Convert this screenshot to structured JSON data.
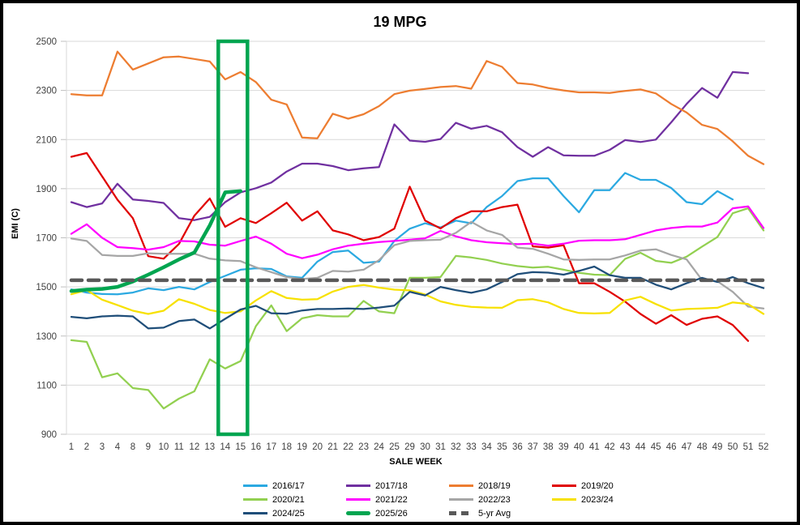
{
  "chart_data": {
    "type": "line",
    "title": "19 MPG",
    "xlabel": "SALE WEEK",
    "ylabel": "EMI (C)",
    "ylim": [
      900,
      2500
    ],
    "y_ticks": [
      900,
      1100,
      1300,
      1500,
      1700,
      1900,
      2100,
      2300,
      2500
    ],
    "grid": "horizontal-only",
    "legend_position": "bottom",
    "categories": [
      1,
      2,
      3,
      4,
      8,
      9,
      10,
      11,
      12,
      13,
      14,
      15,
      16,
      17,
      18,
      19,
      20,
      21,
      22,
      23,
      24,
      25,
      29,
      30,
      31,
      32,
      33,
      34,
      35,
      36,
      37,
      38,
      39,
      40,
      41,
      42,
      43,
      44,
      45,
      46,
      47,
      48,
      49,
      50,
      51,
      52
    ],
    "series": [
      {
        "name": "2016/17",
        "color": "#2BA9E1",
        "width": 2.25,
        "values": [
          1490,
          1477,
          1471,
          1470,
          1477,
          1494,
          1487,
          1500,
          1490,
          1520,
          1545,
          1570,
          1576,
          1573,
          1543,
          1537,
          1603,
          1642,
          1648,
          1598,
          1603,
          1687,
          1737,
          1759,
          1742,
          1770,
          1759,
          1825,
          1870,
          1931,
          1942,
          1942,
          1870,
          1804,
          1894,
          1894,
          1964,
          1936,
          1936,
          1903,
          1845,
          1837,
          1890,
          1856,
          null,
          null
        ]
      },
      {
        "name": "2017/18",
        "color": "#7030A0",
        "width": 2.25,
        "values": [
          1845,
          1825,
          1840,
          1920,
          1856,
          1850,
          1842,
          1780,
          1772,
          1785,
          1845,
          1885,
          1902,
          1925,
          1970,
          2002,
          2002,
          1992,
          1975,
          1983,
          1988,
          2162,
          2096,
          2091,
          2102,
          2168,
          2144,
          2156,
          2130,
          2069,
          2030,
          2069,
          2036,
          2034,
          2034,
          2058,
          2098,
          2090,
          2100,
          2170,
          2245,
          2310,
          2270,
          2375,
          2370,
          null
        ]
      },
      {
        "name": "2018/19",
        "color": "#ED7D31",
        "width": 2.25,
        "values": [
          2285,
          2280,
          2280,
          2458,
          2385,
          2410,
          2435,
          2438,
          2428,
          2418,
          2345,
          2375,
          2334,
          2262,
          2243,
          2108,
          2105,
          2205,
          2185,
          2203,
          2236,
          2285,
          2299,
          2306,
          2314,
          2318,
          2307,
          2420,
          2396,
          2330,
          2324,
          2310,
          2300,
          2292,
          2292,
          2290,
          2298,
          2304,
          2288,
          2245,
          2210,
          2160,
          2143,
          2093,
          2034,
          2000
        ]
      },
      {
        "name": "2019/20",
        "color": "#E00000",
        "width": 2.25,
        "values": [
          2030,
          2045,
          1950,
          1855,
          1780,
          1625,
          1615,
          1675,
          1790,
          1860,
          1745,
          1780,
          1760,
          1800,
          1843,
          1770,
          1808,
          1730,
          1714,
          1690,
          1703,
          1737,
          1908,
          1770,
          1738,
          1780,
          1808,
          1808,
          1825,
          1835,
          1665,
          1660,
          1670,
          1515,
          1515,
          1480,
          1440,
          1390,
          1350,
          1385,
          1345,
          1370,
          1380,
          1345,
          1280,
          null
        ]
      },
      {
        "name": "2020/21",
        "color": "#92D050",
        "width": 2.25,
        "values": [
          1283,
          1276,
          1132,
          1148,
          1088,
          1080,
          1005,
          1045,
          1075,
          1205,
          1168,
          1198,
          1340,
          1425,
          1320,
          1372,
          1385,
          1380,
          1380,
          1443,
          1400,
          1393,
          1537,
          1537,
          1540,
          1626,
          1620,
          1610,
          1595,
          1585,
          1579,
          1582,
          1570,
          1557,
          1550,
          1548,
          1614,
          1639,
          1606,
          1598,
          1623,
          1664,
          1703,
          1800,
          1820,
          1730
        ]
      },
      {
        "name": "2021/22",
        "color": "#FF00FF",
        "width": 2.25,
        "values": [
          1716,
          1755,
          1700,
          1662,
          1658,
          1652,
          1662,
          1687,
          1685,
          1672,
          1668,
          1687,
          1705,
          1676,
          1635,
          1617,
          1631,
          1653,
          1668,
          1676,
          1683,
          1687,
          1692,
          1698,
          1728,
          1706,
          1690,
          1682,
          1678,
          1674,
          1676,
          1668,
          1676,
          1688,
          1690,
          1690,
          1694,
          1712,
          1730,
          1740,
          1746,
          1746,
          1762,
          1820,
          1828,
          1740
        ]
      },
      {
        "name": "2022/23",
        "color": "#A6A6A6",
        "width": 2.25,
        "values": [
          1697,
          1687,
          1630,
          1626,
          1626,
          1637,
          1635,
          1635,
          1635,
          1615,
          1608,
          1605,
          1580,
          1560,
          1540,
          1532,
          1537,
          1565,
          1562,
          1570,
          1609,
          1670,
          1687,
          1690,
          1692,
          1720,
          1765,
          1730,
          1712,
          1660,
          1655,
          1635,
          1612,
          1610,
          1612,
          1612,
          1628,
          1648,
          1653,
          1630,
          1612,
          1528,
          1523,
          1480,
          1420,
          1412
        ]
      },
      {
        "name": "2023/24",
        "color": "#F7E100",
        "width": 2.25,
        "values": [
          1470,
          1487,
          1448,
          1426,
          1403,
          1390,
          1403,
          1450,
          1431,
          1406,
          1394,
          1400,
          1445,
          1483,
          1455,
          1448,
          1450,
          1481,
          1500,
          1508,
          1497,
          1489,
          1486,
          1469,
          1441,
          1427,
          1419,
          1416,
          1415,
          1446,
          1450,
          1437,
          1410,
          1394,
          1392,
          1394,
          1445,
          1460,
          1430,
          1404,
          1410,
          1412,
          1415,
          1437,
          1430,
          1390
        ]
      },
      {
        "name": "2024/25",
        "color": "#1F4E79",
        "width": 2.25,
        "values": [
          1378,
          1372,
          1380,
          1383,
          1380,
          1331,
          1334,
          1361,
          1367,
          1331,
          1370,
          1408,
          1423,
          1393,
          1391,
          1404,
          1410,
          1410,
          1412,
          1410,
          1416,
          1424,
          1480,
          1465,
          1500,
          1487,
          1476,
          1490,
          1520,
          1552,
          1560,
          1558,
          1550,
          1565,
          1583,
          1548,
          1537,
          1537,
          1509,
          1490,
          1515,
          1537,
          1520,
          1540,
          1515,
          1495
        ]
      },
      {
        "name": "2025/26",
        "color": "#00A550",
        "width": 4.5,
        "values": [
          1483,
          1489,
          1492,
          1500,
          1522,
          1550,
          1580,
          1612,
          1640,
          1750,
          1885,
          1890,
          null,
          null,
          null,
          null,
          null,
          null,
          null,
          null,
          null,
          null,
          null,
          null,
          null,
          null,
          null,
          null,
          null,
          null,
          null,
          null,
          null,
          null,
          null,
          null,
          null,
          null,
          null,
          null,
          null,
          null,
          null,
          null,
          null,
          null
        ]
      },
      {
        "name": "5-yr Avg",
        "color": "#595959",
        "width": 4.5,
        "dash": "13 8",
        "constant": 1527
      }
    ],
    "highlight_box": {
      "from_week": 14,
      "to_week": 15,
      "color": "#00A550"
    }
  }
}
